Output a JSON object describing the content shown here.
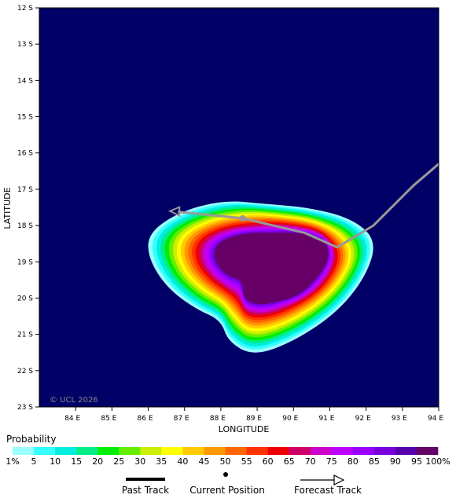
{
  "map": {
    "background_color": "#000066",
    "watermark": "© UCL 2026",
    "x_axis": {
      "label": "LONGITUDE",
      "ticks": [
        "84 E",
        "85 E",
        "86 E",
        "87 E",
        "88 E",
        "89 E",
        "90 E",
        "91 E",
        "92 E",
        "93 E",
        "94 E"
      ],
      "range": [
        83,
        94
      ]
    },
    "y_axis": {
      "label": "LATITUDE",
      "ticks": [
        "12 S",
        "13 S",
        "14 S",
        "15 S",
        "16 S",
        "17 S",
        "18 S",
        "19 S",
        "20 S",
        "21 S",
        "22 S",
        "23 S"
      ],
      "range": [
        12,
        23
      ]
    },
    "past_track": [
      [
        86.6,
        17.6
      ],
      [
        88.6,
        17.8
      ]
    ],
    "current_position": [
      88.6,
      17.8
    ],
    "forecast_track": [
      [
        88.6,
        17.8
      ],
      [
        90.3,
        18.2
      ],
      [
        91.2,
        18.6
      ],
      [
        92.2,
        18.0
      ],
      [
        93.3,
        16.9
      ],
      [
        94.0,
        16.3
      ]
    ],
    "track_color": "#999999"
  },
  "legend": {
    "title": "Probability",
    "levels": [
      "1%",
      "5",
      "10",
      "15",
      "20",
      "25",
      "30",
      "35",
      "40",
      "45",
      "50",
      "55",
      "60",
      "65",
      "70",
      "75",
      "80",
      "85",
      "90",
      "95",
      "100%"
    ],
    "colors": [
      "#99ffff",
      "#33ffff",
      "#00eedd",
      "#00ee88",
      "#00ee00",
      "#66ee00",
      "#ccee00",
      "#ffff00",
      "#ffcc00",
      "#ff9900",
      "#ff6600",
      "#ff3300",
      "#ee0000",
      "#cc0066",
      "#cc00cc",
      "#bb00ff",
      "#9900ff",
      "#7700dd",
      "#5500aa",
      "#660066"
    ],
    "key": [
      {
        "label": "Past Track",
        "symbol": "thick-line"
      },
      {
        "label": "Current Position",
        "symbol": "dot"
      },
      {
        "label": "Forecast Track",
        "symbol": "arrow"
      }
    ]
  }
}
